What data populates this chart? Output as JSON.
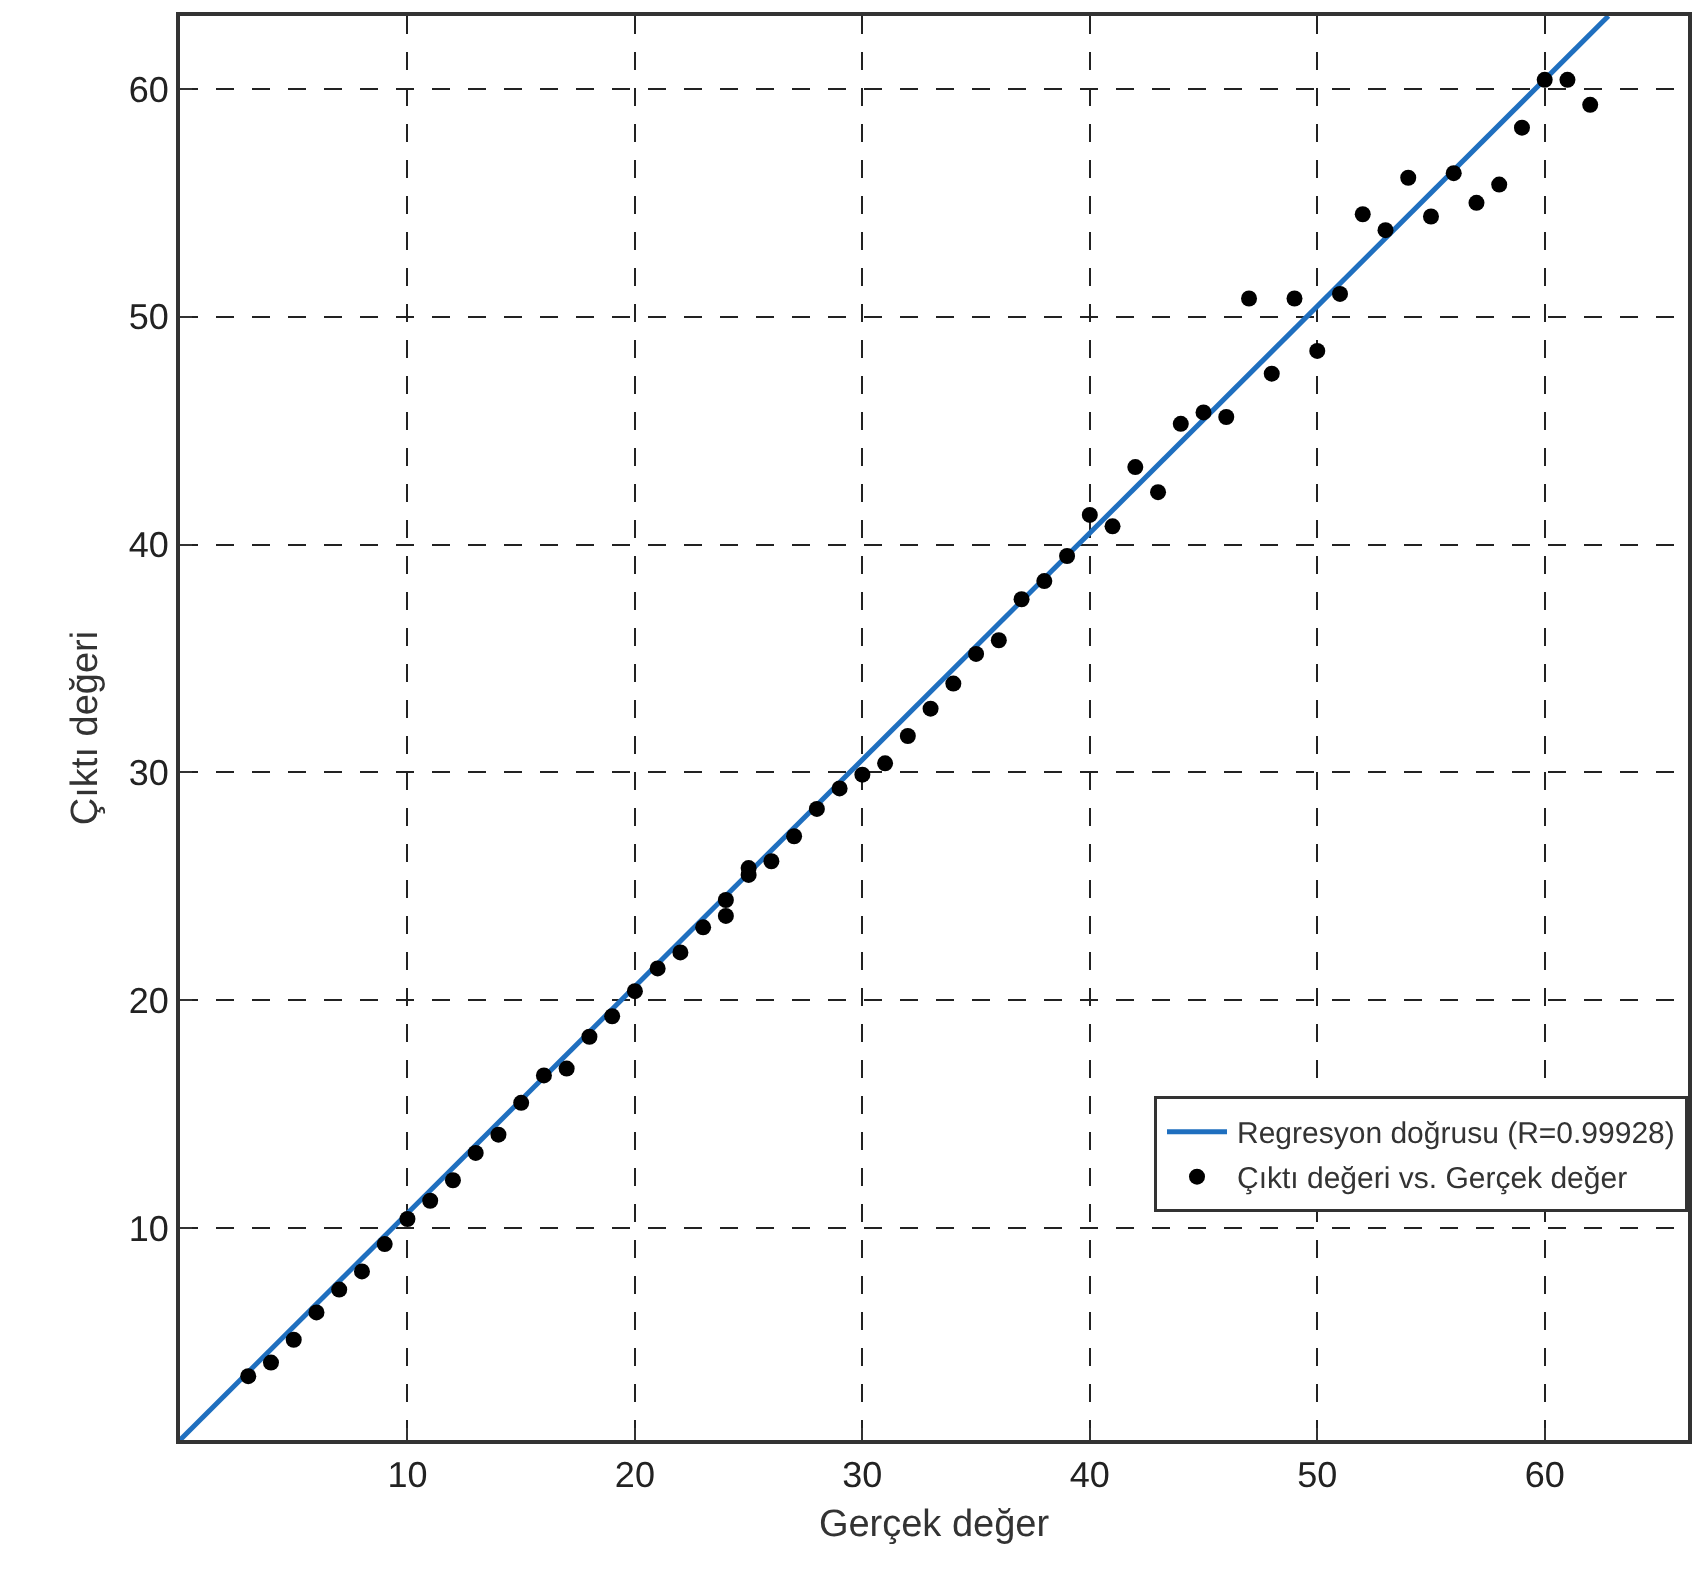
{
  "chart_data": {
    "type": "scatter",
    "xlabel": "Gerçek değer",
    "ylabel": "Çıktı değeri",
    "xlim": [
      0,
      66.3
    ],
    "ylim": [
      0.7,
      63.2
    ],
    "xticks": [
      10,
      20,
      30,
      40,
      50,
      60
    ],
    "yticks": [
      10,
      20,
      30,
      40,
      50,
      60
    ],
    "grid": true,
    "legend": "bottom right",
    "series": [
      {
        "name": "Regresyon doğrusu (R=0.99928)",
        "type": "line",
        "color": "#1f6fbf",
        "marker": "none",
        "line_style": "solid",
        "x": [
          0,
          62.8
        ],
        "values": [
          0.7,
          63.2
        ]
      },
      {
        "name": "Çıktı değeri vs. Gerçek değer",
        "color": "#000000",
        "marker": "circle",
        "x": [
          3,
          4,
          5,
          6,
          7,
          8,
          9,
          10,
          11,
          12,
          13,
          14,
          15,
          16,
          17,
          18,
          19,
          20,
          21,
          22,
          23,
          24,
          24,
          25,
          25,
          26,
          27,
          28,
          29,
          30,
          31,
          32,
          33,
          34,
          35,
          36,
          37,
          38,
          39,
          40,
          41,
          42,
          43,
          44,
          45,
          46,
          47,
          48,
          49,
          50,
          51,
          52,
          53,
          54,
          55,
          56,
          57,
          58,
          59,
          60,
          61,
          62
        ],
        "values": [
          3.5,
          4.1,
          5.1,
          6.3,
          7.3,
          8.1,
          9.3,
          10.4,
          11.2,
          12.1,
          13.3,
          14.1,
          15.5,
          16.7,
          17.0,
          18.4,
          19.3,
          20.4,
          21.4,
          22.1,
          23.2,
          23.7,
          24.4,
          25.5,
          25.8,
          26.1,
          27.2,
          28.4,
          29.3,
          29.9,
          30.4,
          31.6,
          32.8,
          33.9,
          35.2,
          35.8,
          37.6,
          38.4,
          39.5,
          41.3,
          40.8,
          43.4,
          42.3,
          45.3,
          45.8,
          45.6,
          50.8,
          47.5,
          50.8,
          48.5,
          51.0,
          54.5,
          53.8,
          56.1,
          54.4,
          56.3,
          55.0,
          55.8,
          58.3,
          60.4,
          60.4,
          59.3
        ]
      }
    ]
  }
}
